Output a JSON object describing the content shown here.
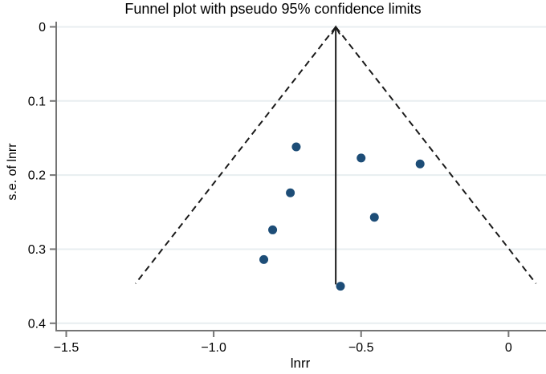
{
  "chart_data": {
    "type": "scatter",
    "subtype": "funnel-plot",
    "title": "Funnel plot with pseudo 95% confidence limits",
    "xlabel": "lnrr",
    "ylabel": "s.e. of lnrr",
    "x_tick_values": [
      -1.5,
      -1.0,
      -0.5,
      0
    ],
    "x_tick_labels": [
      "−1.5",
      "−1.0",
      "−0.5",
      "0"
    ],
    "y_tick_values": [
      0,
      0.1,
      0.2,
      0.3,
      0.4
    ],
    "y_tick_labels": [
      "0",
      "0.1",
      "0.2",
      "0.3",
      "0.4"
    ],
    "xlim": [
      -1.534,
      0.127
    ],
    "ylim": [
      -0.007,
      0.41
    ],
    "y_axis_inverted": true,
    "grid": "horizontal-only",
    "points": [
      {
        "x": -0.72,
        "se": 0.162
      },
      {
        "x": -0.5,
        "se": 0.177
      },
      {
        "x": -0.3,
        "se": 0.185
      },
      {
        "x": -0.74,
        "se": 0.224
      },
      {
        "x": -0.455,
        "se": 0.257
      },
      {
        "x": -0.8,
        "se": 0.274
      },
      {
        "x": -0.83,
        "se": 0.314
      },
      {
        "x": -0.57,
        "se": 0.35
      }
    ],
    "pooled_estimate": -0.586,
    "confidence_z": 1.96,
    "funnel_max_se": 0.3465,
    "colors": {
      "marker": "#1d4d77",
      "gridline": "#e8eef0",
      "axis": "#757575",
      "funnel_line": "#1a1a1a",
      "estimate_line": "#1a1a1a",
      "text": "#000000",
      "background": "#ffffff"
    }
  }
}
